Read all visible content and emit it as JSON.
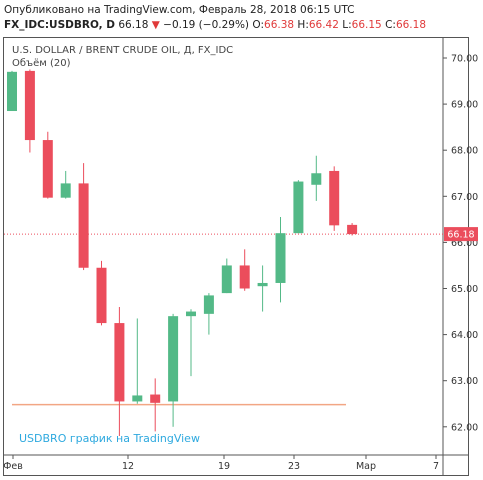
{
  "header": {
    "published": "Опубликовано на TradingView.com, Февраль 28, 2018 06:15 UTC",
    "symbol": "FX_IDC:USDBRO, D",
    "last": "66.18",
    "change_text": "−0.19 (−0.29%)",
    "o_label": "O:",
    "o_value": "66.38",
    "h_label": "H:",
    "h_value": "66.42",
    "l_label": "L:",
    "l_value": "66.15",
    "c_label": "C:",
    "c_value": "66.18"
  },
  "overlay": {
    "instrument": "U.S. DOLLAR / BRENT CRUDE OIL, Д, FX_IDC",
    "volume": "Объём (20)"
  },
  "watermark": "USDBRO график на TradingView",
  "colors": {
    "up": "#53b987",
    "down": "#eb4d5c",
    "price_line": "#eb4d5c",
    "volume_line": "#f2a684",
    "axis": "#555555"
  },
  "chart_data": {
    "type": "candlestick",
    "ylim": [
      61.7,
      70.4
    ],
    "y_ticks": [
      62.0,
      63.0,
      64.0,
      65.0,
      66.0,
      67.0,
      68.0,
      69.0,
      70.0
    ],
    "x_ticks": [
      "Фев",
      "12",
      "19",
      "23",
      "Мар",
      "7"
    ],
    "current_price": 66.18,
    "candles": [
      {
        "o": 68.85,
        "h": 69.72,
        "l": 68.85,
        "c": 69.7
      },
      {
        "o": 69.72,
        "h": 69.75,
        "l": 67.95,
        "c": 68.22
      },
      {
        "o": 68.22,
        "h": 68.4,
        "l": 66.95,
        "c": 66.97
      },
      {
        "o": 66.97,
        "h": 67.55,
        "l": 66.95,
        "c": 67.28
      },
      {
        "o": 67.28,
        "h": 67.72,
        "l": 65.4,
        "c": 65.45
      },
      {
        "o": 65.45,
        "h": 65.6,
        "l": 64.2,
        "c": 64.25
      },
      {
        "o": 64.25,
        "h": 64.6,
        "l": 61.8,
        "c": 62.55
      },
      {
        "o": 62.55,
        "h": 64.35,
        "l": 62.5,
        "c": 62.68
      },
      {
        "o": 62.7,
        "h": 63.05,
        "l": 61.9,
        "c": 62.52
      },
      {
        "o": 62.55,
        "h": 64.45,
        "l": 62.0,
        "c": 64.4
      },
      {
        "o": 64.4,
        "h": 64.55,
        "l": 63.1,
        "c": 64.5
      },
      {
        "o": 64.45,
        "h": 64.9,
        "l": 64.0,
        "c": 64.85
      },
      {
        "o": 64.9,
        "h": 65.65,
        "l": 64.9,
        "c": 65.5
      },
      {
        "o": 65.5,
        "h": 65.85,
        "l": 64.95,
        "c": 65.0
      },
      {
        "o": 65.05,
        "h": 65.5,
        "l": 64.5,
        "c": 65.12
      },
      {
        "o": 65.12,
        "h": 66.55,
        "l": 64.7,
        "c": 66.2
      },
      {
        "o": 66.2,
        "h": 67.35,
        "l": 66.2,
        "c": 67.32
      },
      {
        "o": 67.25,
        "h": 67.88,
        "l": 66.9,
        "c": 67.5
      },
      {
        "o": 67.55,
        "h": 67.65,
        "l": 66.25,
        "c": 66.37
      },
      {
        "o": 66.38,
        "h": 66.42,
        "l": 66.15,
        "c": 66.18
      }
    ],
    "volume_level": 62.48
  }
}
